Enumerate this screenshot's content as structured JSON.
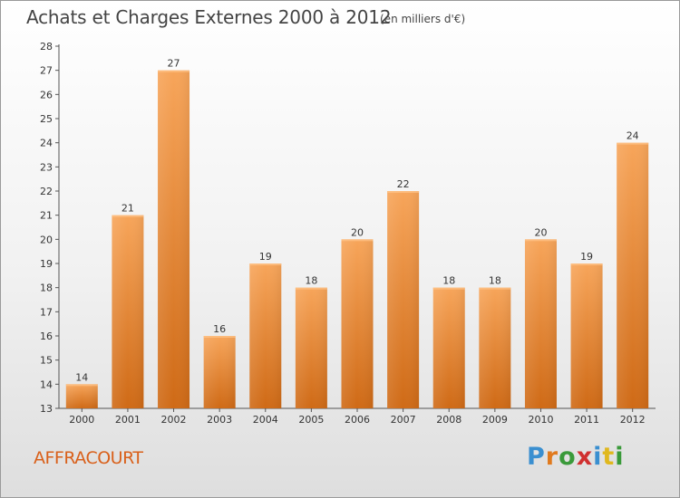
{
  "page": {
    "title": "Achats et Charges Externes 2000 à 2012",
    "subtitle": "(en milliers d'€)",
    "commune": "AFFRACOURT",
    "logo": {
      "letters": [
        "P",
        "r",
        "o",
        "x",
        "i",
        "t",
        "i"
      ],
      "colors": [
        "#3a8fd0",
        "#e07a1e",
        "#3a9a3a",
        "#d03030",
        "#3a8fd0",
        "#e0b81e",
        "#3a9a3a"
      ]
    }
  },
  "chart_data": {
    "type": "bar",
    "title": "Achats et Charges Externes 2000 à 2012",
    "subtitle": "(en milliers d'€)",
    "xlabel": "",
    "ylabel": "",
    "categories": [
      "2000",
      "2001",
      "2002",
      "2003",
      "2004",
      "2005",
      "2006",
      "2007",
      "2008",
      "2009",
      "2010",
      "2011",
      "2012"
    ],
    "values": [
      14,
      21,
      27,
      16,
      19,
      18,
      20,
      22,
      18,
      18,
      20,
      19,
      24
    ],
    "ylim": [
      13,
      28
    ],
    "yticks": [
      13,
      14,
      15,
      16,
      17,
      18,
      19,
      20,
      21,
      22,
      23,
      24,
      25,
      26,
      27,
      28
    ],
    "grid": false,
    "bar_color": "#f0892f"
  }
}
